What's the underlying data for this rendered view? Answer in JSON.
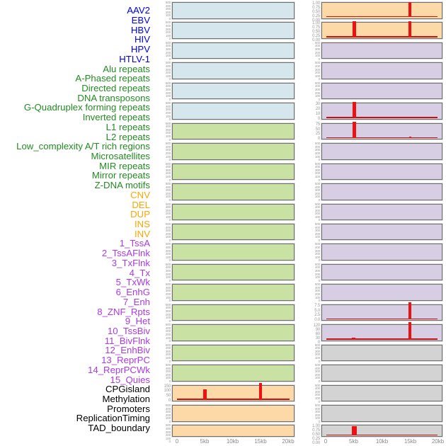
{
  "figure": {
    "x_ticks": [
      "0",
      "5kb",
      "10kb",
      "15kb",
      "20kb"
    ],
    "palette": {
      "blue": "#d5e6ed",
      "green": "#c9e1a3",
      "orange": "#fcd9a6",
      "purple": "#d7cee4",
      "gray": "#d3d3d3"
    },
    "label_palette": {
      "virus": "#0000ee",
      "repeat": "#228b22",
      "sv": "#ffa500",
      "chromhmm": "#ac39e6",
      "other": "#000000"
    },
    "labels": [
      {
        "text": "AAV2",
        "group": "virus"
      },
      {
        "text": "EBV",
        "group": "virus"
      },
      {
        "text": "HBV",
        "group": "virus"
      },
      {
        "text": "HIV",
        "group": "virus"
      },
      {
        "text": "HPV",
        "group": "virus"
      },
      {
        "text": "HTLV-1",
        "group": "virus"
      },
      {
        "text": "Alu repeats",
        "group": "repeat"
      },
      {
        "text": "A-Phased repeats",
        "group": "repeat"
      },
      {
        "text": "Directed repeats",
        "group": "repeat"
      },
      {
        "text": "DNA transposons",
        "group": "repeat"
      },
      {
        "text": "G-Quadruplex forming repeats",
        "group": "repeat"
      },
      {
        "text": "Inverted repeats",
        "group": "repeat"
      },
      {
        "text": "L1 repeats",
        "group": "repeat"
      },
      {
        "text": "L2 repeats",
        "group": "repeat"
      },
      {
        "text": "Low_complexity A/T rich regions",
        "group": "repeat"
      },
      {
        "text": "Microsatellites",
        "group": "repeat"
      },
      {
        "text": "MIR repeats",
        "group": "repeat"
      },
      {
        "text": "Mirror repeats",
        "group": "repeat"
      },
      {
        "text": "Z-DNA motifs",
        "group": "repeat"
      },
      {
        "text": "CNV",
        "group": "sv"
      },
      {
        "text": "DEL",
        "group": "sv"
      },
      {
        "text": "DUP",
        "group": "sv"
      },
      {
        "text": "INS",
        "group": "sv"
      },
      {
        "text": "INV",
        "group": "sv"
      },
      {
        "text": "1_TssA",
        "group": "chromhmm"
      },
      {
        "text": "2_TssAFlnk",
        "group": "chromhmm"
      },
      {
        "text": "3_TxFlnk",
        "group": "chromhmm"
      },
      {
        "text": "4_Tx",
        "group": "chromhmm"
      },
      {
        "text": "5_TxWk",
        "group": "chromhmm"
      },
      {
        "text": "6_EnhG",
        "group": "chromhmm"
      },
      {
        "text": "7_Enh",
        "group": "chromhmm"
      },
      {
        "text": "8_ZNF_Rpts",
        "group": "chromhmm"
      },
      {
        "text": "9_Het",
        "group": "chromhmm"
      },
      {
        "text": "10_TssBiv",
        "group": "chromhmm"
      },
      {
        "text": "11_BivFlnk",
        "group": "chromhmm"
      },
      {
        "text": "12_EnhBiv",
        "group": "chromhmm"
      },
      {
        "text": "13_ReprPC",
        "group": "chromhmm"
      },
      {
        "text": "14_ReprPCWk",
        "group": "chromhmm"
      },
      {
        "text": "15_Quies",
        "group": "chromhmm"
      },
      {
        "text": "CPGisland",
        "group": "other"
      },
      {
        "text": "Methylation",
        "group": "other"
      },
      {
        "text": "Promoters",
        "group": "other"
      },
      {
        "text": "ReplicationTiming",
        "group": "other"
      },
      {
        "text": "TAD_boundary",
        "group": "other"
      }
    ],
    "columns": [
      {
        "panels": [
          {
            "bg": "blue",
            "yticks": [
              "500",
              "400",
              "300",
              "200",
              "100",
              "0"
            ]
          },
          {
            "bg": "blue",
            "yticks": [
              "500",
              "400",
              "300",
              "200",
              "100",
              "0"
            ]
          },
          {
            "bg": "blue",
            "yticks": [
              "500",
              "400",
              "300",
              "200",
              "100",
              "0"
            ]
          },
          {
            "bg": "blue",
            "yticks": [
              "500",
              "400",
              "300",
              "200",
              "100",
              "0"
            ]
          },
          {
            "bg": "blue",
            "yticks": [
              "500",
              "400",
              "300",
              "200",
              "100",
              "0"
            ]
          },
          {
            "bg": "blue",
            "yticks": [
              "500",
              "400",
              "300",
              "200",
              "100",
              "0"
            ]
          },
          {
            "bg": "green",
            "yticks": [
              "500",
              "400",
              "300",
              "200",
              "100",
              "0"
            ]
          },
          {
            "bg": "green",
            "yticks": [
              "500",
              "400",
              "300",
              "200",
              "100",
              "0"
            ]
          },
          {
            "bg": "green",
            "yticks": [
              "500",
              "400",
              "300",
              "200",
              "100",
              "0"
            ]
          },
          {
            "bg": "green",
            "yticks": [
              "500",
              "400",
              "300",
              "200",
              "100",
              "0"
            ]
          },
          {
            "bg": "green",
            "yticks": [
              "500",
              "400",
              "300",
              "200",
              "100",
              "0"
            ]
          },
          {
            "bg": "green",
            "yticks": [
              "500",
              "400",
              "300",
              "200",
              "100",
              "0"
            ]
          },
          {
            "bg": "green",
            "yticks": [
              "500",
              "400",
              "300",
              "200",
              "100",
              "0"
            ]
          },
          {
            "bg": "green",
            "yticks": [
              "500",
              "400",
              "300",
              "200",
              "100",
              "0"
            ]
          },
          {
            "bg": "green",
            "yticks": [
              "500",
              "400",
              "300",
              "200",
              "100",
              "0"
            ]
          },
          {
            "bg": "green",
            "yticks": [
              "500",
              "400",
              "300",
              "200",
              "100",
              "0"
            ]
          },
          {
            "bg": "green",
            "yticks": [
              "500",
              "400",
              "300",
              "200",
              "100",
              "0"
            ]
          },
          {
            "bg": "green",
            "yticks": [
              "500",
              "400",
              "300",
              "200",
              "100",
              "0"
            ]
          },
          {
            "bg": "green",
            "yticks": [
              "500",
              "400",
              "300",
              "200",
              "100",
              "0"
            ]
          },
          {
            "bg": "orange",
            "yticks": [
              "150",
              "100",
              "50",
              "0"
            ],
            "marks": [
              {
                "t": "base"
              },
              {
                "t": "bar",
                "x": 0.266,
                "w": 5,
                "h": 0.72
              },
              {
                "t": "spike",
                "x": 0.725,
                "w": 3.5,
                "h": 1.18
              }
            ]
          },
          {
            "bg": "orange",
            "yticks": [
              "500",
              "400",
              "300",
              "200",
              "100",
              "0"
            ]
          },
          {
            "bg": "orange",
            "yticks": [
              "500",
              "400",
              "300",
              "200",
              "100",
              "0"
            ]
          }
        ]
      },
      {
        "panels": [
          {
            "bg": "orange",
            "yticks": [
              "1.00",
              "0.75",
              "0.50",
              "0.25",
              "0.00"
            ],
            "marks": [
              {
                "t": "base"
              },
              {
                "t": "spike",
                "x": 0.735,
                "w": 4,
                "h": 1.08
              }
            ]
          },
          {
            "bg": "orange",
            "yticks": [
              "1.00",
              "0.75",
              "0.50",
              "0.25",
              "0.00"
            ],
            "marks": [
              {
                "t": "base"
              },
              {
                "t": "spike",
                "x": 0.27,
                "w": 5,
                "h": 1.12
              },
              {
                "t": "spike",
                "x": 0.735,
                "w": 4,
                "h": 1.12
              }
            ]
          },
          {
            "bg": "purple",
            "yticks": [
              "500",
              "400",
              "300",
              "200",
              "100",
              "0"
            ]
          },
          {
            "bg": "purple",
            "yticks": [
              "500",
              "400",
              "300",
              "200",
              "100",
              "0"
            ]
          },
          {
            "bg": "purple",
            "yticks": [
              "500",
              "400",
              "300",
              "200",
              "100",
              "0"
            ]
          },
          {
            "bg": "purple",
            "yticks": [
              "30",
              "20",
              "10",
              "0"
            ],
            "marks": [
              {
                "t": "base"
              },
              {
                "t": "spike",
                "x": 0.27,
                "w": 5,
                "h": 1.14
              }
            ]
          },
          {
            "bg": "purple",
            "yticks": [
              "75",
              "50",
              "25",
              "0"
            ],
            "marks": [
              {
                "t": "base"
              },
              {
                "t": "spike",
                "x": 0.27,
                "w": 5.5,
                "h": 1.14
              },
              {
                "t": "bar",
                "x": 0.735,
                "w": 3,
                "h": 0.1
              }
            ]
          },
          {
            "bg": "purple",
            "yticks": [
              "500",
              "400",
              "300",
              "200",
              "100",
              "0"
            ]
          },
          {
            "bg": "purple",
            "yticks": [
              "500",
              "400",
              "300",
              "200",
              "100",
              "0"
            ]
          },
          {
            "bg": "purple",
            "yticks": [
              "500",
              "400",
              "300",
              "200",
              "100",
              "0"
            ]
          },
          {
            "bg": "purple",
            "yticks": [
              "500",
              "400",
              "300",
              "200",
              "100",
              "0"
            ]
          },
          {
            "bg": "purple",
            "yticks": [
              "500",
              "400",
              "300",
              "200",
              "100",
              "0"
            ]
          },
          {
            "bg": "purple",
            "yticks": [
              "500",
              "400",
              "300",
              "200",
              "100",
              "0"
            ]
          },
          {
            "bg": "purple",
            "yticks": [
              "500",
              "400",
              "300",
              "200",
              "100",
              "0"
            ]
          },
          {
            "bg": "purple",
            "yticks": [
              "500",
              "400",
              "300",
              "200",
              "100",
              "0"
            ]
          },
          {
            "bg": "purple",
            "yticks": [
              "7.5",
              "5.0",
              "2.5",
              "0.0"
            ],
            "marks": [
              {
                "t": "base"
              },
              {
                "t": "spike",
                "x": 0.735,
                "w": 3.5,
                "h": 1.2
              }
            ]
          },
          {
            "bg": "purple",
            "yticks": [
              "120",
              "90",
              "60",
              "30",
              "0"
            ],
            "marks": [
              {
                "t": "base"
              },
              {
                "t": "bar",
                "x": 0.263,
                "w": 5,
                "h": 0.14
              },
              {
                "t": "spike",
                "x": 0.735,
                "w": 4,
                "h": 1.2
              }
            ]
          },
          {
            "bg": "gray",
            "yticks": [
              "500",
              "400",
              "300",
              "200",
              "100",
              "0"
            ]
          },
          {
            "bg": "gray",
            "yticks": [
              "500",
              "400",
              "300",
              "200",
              "100",
              "0"
            ]
          },
          {
            "bg": "gray",
            "yticks": [
              "500",
              "400",
              "300",
              "200",
              "100",
              "0"
            ]
          },
          {
            "bg": "gray",
            "yticks": [
              "500",
              "400",
              "300",
              "200",
              "100",
              "0"
            ]
          },
          {
            "bg": "gray",
            "yticks": [
              "1.00",
              "0.75",
              "0.50",
              "0.25",
              "0.00"
            ],
            "marks": [
              {
                "t": "base"
              },
              {
                "t": "spike",
                "x": 0.27,
                "w": 6.5,
                "h": 0.95
              }
            ]
          }
        ]
      }
    ]
  },
  "chart_data": {
    "type": "small-multiples",
    "description": "44 genomic feature tracks over a 20kb window; left plot column = labels 1-22 (viruses blue, repeats green, CNV/DEL/DUP orange), right plot column = labels 23-44 (INS/INV orange, chromHMM states purple, other tracks gray). Most tracks are flat near zero; red spikes occur at ~5kb and ~15kb.",
    "x_range_kb": [
      0,
      20
    ],
    "x_ticks": [
      "0",
      "5kb",
      "10kb",
      "15kb",
      "20kb"
    ],
    "highlighted_facets": [
      {
        "name": "CNV",
        "y_ticks": [
          150,
          100,
          50,
          0
        ],
        "spikes": [
          {
            "x_kb": 5,
            "value": 110
          },
          {
            "x_kb": 15,
            "value": 175,
            "clipped_above_axis": true
          }
        ]
      },
      {
        "name": "INS",
        "y_ticks": [
          1.0,
          0.75,
          0.5,
          0.25,
          0.0
        ],
        "spikes": [
          {
            "x_kb": 15,
            "value": 1.0
          }
        ]
      },
      {
        "name": "INV",
        "y_ticks": [
          1.0,
          0.75,
          0.5,
          0.25,
          0.0
        ],
        "spikes": [
          {
            "x_kb": 5,
            "value": 1.0
          },
          {
            "x_kb": 15,
            "value": 1.0
          }
        ]
      },
      {
        "name": "4_Tx",
        "y_ticks": [
          30,
          20,
          10,
          0
        ],
        "spikes": [
          {
            "x_kb": 5,
            "value": 33,
            "clipped_above_axis": true
          }
        ]
      },
      {
        "name": "5_TxWk",
        "y_ticks": [
          75,
          50,
          25,
          0
        ],
        "spikes": [
          {
            "x_kb": 5,
            "value": 85,
            "clipped_above_axis": true
          },
          {
            "x_kb": 15,
            "value": 7
          }
        ]
      },
      {
        "name": "14_ReprPCWk",
        "y_ticks": [
          7.5,
          5.0,
          2.5,
          0.0
        ],
        "spikes": [
          {
            "x_kb": 15,
            "value": 9,
            "clipped_above_axis": true
          }
        ]
      },
      {
        "name": "15_Quies",
        "y_ticks": [
          120,
          90,
          60,
          30,
          0
        ],
        "spikes": [
          {
            "x_kb": 5,
            "value": 15
          },
          {
            "x_kb": 15,
            "value": 140,
            "clipped_above_axis": true
          }
        ]
      },
      {
        "name": "TAD_boundary",
        "y_ticks": [
          1.0,
          0.75,
          0.5,
          0.25,
          0.0
        ],
        "spikes": [
          {
            "x_kb": 5,
            "value": 1.0
          }
        ]
      }
    ],
    "all_other_facets": "flat baseline near 0"
  }
}
